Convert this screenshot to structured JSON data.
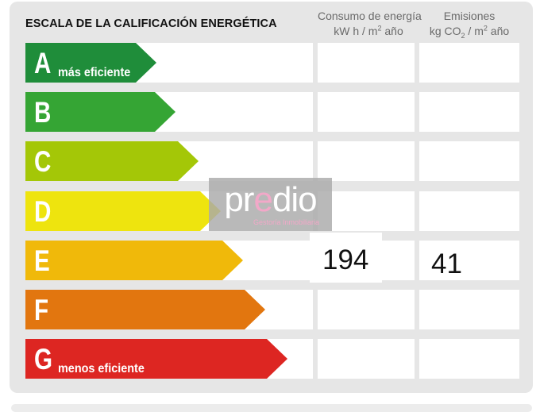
{
  "title": "ESCALA DE LA CALIFICACIÓN ENERGÉTICA",
  "columns": {
    "consumo": {
      "line1": "Consumo de energía",
      "line2_pre": "kW h / m",
      "line2_sup": "2",
      "line2_post": " año"
    },
    "emisiones": {
      "line1": "Emisiones",
      "line2_pre": "kg CO",
      "line2_sub": "2",
      "line2_mid": " / m",
      "line2_sup": "2",
      "line2_post": " año"
    }
  },
  "classes": [
    {
      "letter": "A",
      "sublabel": "más eficiente",
      "color": "#1f8d3a"
    },
    {
      "letter": "B",
      "sublabel": "",
      "color": "#35a534"
    },
    {
      "letter": "C",
      "sublabel": "",
      "color": "#a4c707"
    },
    {
      "letter": "D",
      "sublabel": "",
      "color": "#eee40e"
    },
    {
      "letter": "E",
      "sublabel": "",
      "color": "#f0b90a"
    },
    {
      "letter": "F",
      "sublabel": "",
      "color": "#e2760f"
    },
    {
      "letter": "G",
      "sublabel": "menos eficiente",
      "color": "#dd2622"
    }
  ],
  "rating": {
    "class": "E",
    "consumo": "194",
    "emisiones": "41"
  },
  "watermark": {
    "brand_pre": "pr",
    "brand_accent": "e",
    "brand_post": "dio",
    "tagline": "Gestoría Inmobiliaria"
  }
}
